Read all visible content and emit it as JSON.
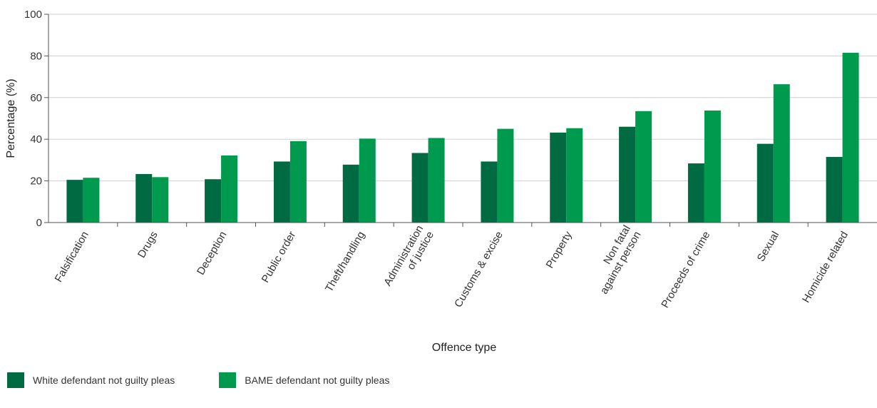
{
  "chart_data": {
    "type": "bar",
    "title": "",
    "xlabel": "Offence type",
    "ylabel": "Percentage (%)",
    "ylim": [
      0,
      100
    ],
    "yticks": [
      0,
      20,
      40,
      60,
      80,
      100
    ],
    "grid": true,
    "legend_position": "bottom-left",
    "categories": [
      "Falsification",
      "Drugs",
      "Deception",
      "Public order",
      "Theft/handling",
      "Administration\nof justice",
      "Customs & excise",
      "Property",
      "Non fatal\nagainst person",
      "Proceeds of crime",
      "Sexual",
      "Homicide related"
    ],
    "series": [
      {
        "name": "White defendant not guilty pleas",
        "color": "#006a43",
        "values": [
          20.5,
          23.3,
          20.8,
          29.3,
          27.8,
          33.4,
          29.3,
          43.2,
          46.0,
          28.4,
          37.8,
          31.5
        ]
      },
      {
        "name": "BAME defendant not guilty pleas",
        "color": "#009a4e",
        "values": [
          21.5,
          21.8,
          32.2,
          39.1,
          40.3,
          40.6,
          45.0,
          45.3,
          53.5,
          53.8,
          66.4,
          81.5
        ]
      }
    ]
  }
}
